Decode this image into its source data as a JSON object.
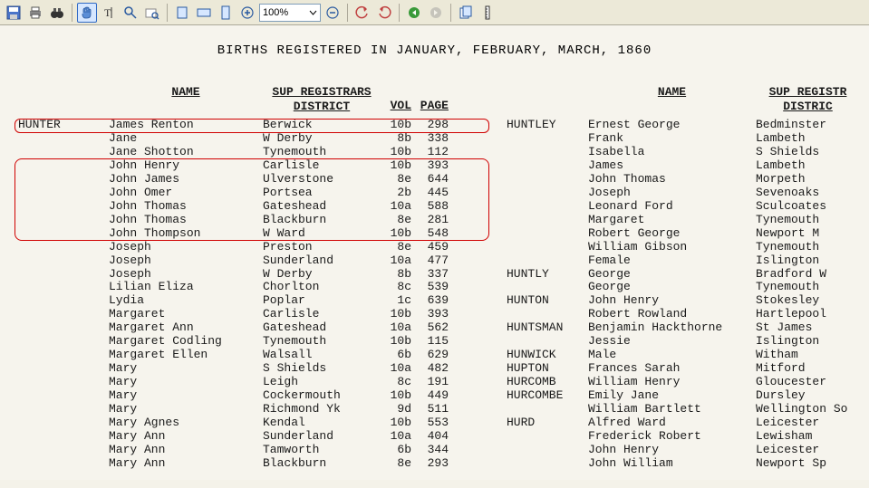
{
  "toolbar": {
    "zoom_value": "100%"
  },
  "doc": {
    "title": "BIRTHS REGISTERED IN JANUARY, FEBRUARY, MARCH, 1860",
    "headers": {
      "name": "NAME",
      "district": "SUP REGISTRARS",
      "district2": "DISTRICT",
      "vol": "VOL",
      "page": "PAGE",
      "sup_r": "SUP REGISTR",
      "distr_r": "DISTRIC"
    },
    "left": [
      {
        "sur": "HUNTER",
        "name": "James Renton",
        "dist": "Berwick",
        "vol": "10b",
        "page": "298"
      },
      {
        "sur": "",
        "name": "Jane",
        "dist": "W Derby",
        "vol": "8b",
        "page": "338"
      },
      {
        "sur": "",
        "name": "Jane Shotton",
        "dist": "Tynemouth",
        "vol": "10b",
        "page": "112"
      },
      {
        "sur": "",
        "name": "John Henry",
        "dist": "Carlisle",
        "vol": "10b",
        "page": "393"
      },
      {
        "sur": "",
        "name": "John James",
        "dist": "Ulverstone",
        "vol": "8e",
        "page": "644"
      },
      {
        "sur": "",
        "name": "John Omer",
        "dist": "Portsea",
        "vol": "2b",
        "page": "445"
      },
      {
        "sur": "",
        "name": "John Thomas",
        "dist": "Gateshead",
        "vol": "10a",
        "page": "588"
      },
      {
        "sur": "",
        "name": "John Thomas",
        "dist": "Blackburn",
        "vol": "8e",
        "page": "281"
      },
      {
        "sur": "",
        "name": "John Thompson",
        "dist": "W Ward",
        "vol": "10b",
        "page": "548"
      },
      {
        "sur": "",
        "name": "Joseph",
        "dist": "Preston",
        "vol": "8e",
        "page": "459"
      },
      {
        "sur": "",
        "name": "Joseph",
        "dist": "Sunderland",
        "vol": "10a",
        "page": "477"
      },
      {
        "sur": "",
        "name": "Joseph",
        "dist": "W Derby",
        "vol": "8b",
        "page": "337"
      },
      {
        "sur": "",
        "name": "Lilian Eliza",
        "dist": "Chorlton",
        "vol": "8c",
        "page": "539"
      },
      {
        "sur": "",
        "name": "Lydia",
        "dist": "Poplar",
        "vol": "1c",
        "page": "639"
      },
      {
        "sur": "",
        "name": "Margaret",
        "dist": "Carlisle",
        "vol": "10b",
        "page": "393"
      },
      {
        "sur": "",
        "name": "Margaret Ann",
        "dist": "Gateshead",
        "vol": "10a",
        "page": "562"
      },
      {
        "sur": "",
        "name": "Margaret Codling",
        "dist": "Tynemouth",
        "vol": "10b",
        "page": "115"
      },
      {
        "sur": "",
        "name": "Margaret Ellen",
        "dist": "Walsall",
        "vol": "6b",
        "page": "629"
      },
      {
        "sur": "",
        "name": "Mary",
        "dist": "S Shields",
        "vol": "10a",
        "page": "482"
      },
      {
        "sur": "",
        "name": "Mary",
        "dist": "Leigh",
        "vol": "8c",
        "page": "191"
      },
      {
        "sur": "",
        "name": "Mary",
        "dist": "Cockermouth",
        "vol": "10b",
        "page": "449"
      },
      {
        "sur": "",
        "name": "Mary",
        "dist": "Richmond Yk",
        "vol": "9d",
        "page": "511"
      },
      {
        "sur": "",
        "name": "Mary Agnes",
        "dist": "Kendal",
        "vol": "10b",
        "page": "553"
      },
      {
        "sur": "",
        "name": "Mary Ann",
        "dist": "Sunderland",
        "vol": "10a",
        "page": "404"
      },
      {
        "sur": "",
        "name": "Mary Ann",
        "dist": "Tamworth",
        "vol": "6b",
        "page": "344"
      },
      {
        "sur": "",
        "name": "Mary Ann",
        "dist": "Blackburn",
        "vol": "8e",
        "page": "293"
      }
    ],
    "right": [
      {
        "sur": "HUNTLEY",
        "name": "Ernest George",
        "dist": "Bedminster"
      },
      {
        "sur": "",
        "name": "Frank",
        "dist": "Lambeth"
      },
      {
        "sur": "",
        "name": "Isabella",
        "dist": "S Shields"
      },
      {
        "sur": "",
        "name": "James",
        "dist": "Lambeth"
      },
      {
        "sur": "",
        "name": "John Thomas",
        "dist": "Morpeth"
      },
      {
        "sur": "",
        "name": "Joseph",
        "dist": "Sevenoaks"
      },
      {
        "sur": "",
        "name": "Leonard Ford",
        "dist": "Sculcoates"
      },
      {
        "sur": "",
        "name": "Margaret",
        "dist": "Tynemouth"
      },
      {
        "sur": "",
        "name": "Robert George",
        "dist": "Newport M"
      },
      {
        "sur": "",
        "name": "William Gibson",
        "dist": "Tynemouth"
      },
      {
        "sur": "",
        "name": "Female",
        "dist": "Islington"
      },
      {
        "sur": "HUNTLY",
        "name": "George",
        "dist": "Bradford W"
      },
      {
        "sur": "",
        "name": "George",
        "dist": "Tynemouth"
      },
      {
        "sur": "HUNTON",
        "name": "John Henry",
        "dist": "Stokesley"
      },
      {
        "sur": "",
        "name": "Robert Rowland",
        "dist": "Hartlepool"
      },
      {
        "sur": "HUNTSMAN",
        "name": "Benjamin Hackthorne",
        "dist": "St James"
      },
      {
        "sur": "",
        "name": "Jessie",
        "dist": "Islington"
      },
      {
        "sur": "HUNWICK",
        "name": "Male",
        "dist": "Witham"
      },
      {
        "sur": "HUPTON",
        "name": "Frances Sarah",
        "dist": "Mitford"
      },
      {
        "sur": "HURCOMB",
        "name": "William Henry",
        "dist": "Gloucester"
      },
      {
        "sur": "HURCOMBE",
        "name": "Emily Jane",
        "dist": "Dursley"
      },
      {
        "sur": "",
        "name": "William Bartlett",
        "dist": "Wellington So"
      },
      {
        "sur": "HURD",
        "name": "Alfred Ward",
        "dist": "Leicester"
      },
      {
        "sur": "",
        "name": "Frederick Robert",
        "dist": "Lewisham"
      },
      {
        "sur": "",
        "name": "John Henry",
        "dist": "Leicester"
      },
      {
        "sur": "",
        "name": "John William",
        "dist": "Newport Sp"
      }
    ]
  }
}
